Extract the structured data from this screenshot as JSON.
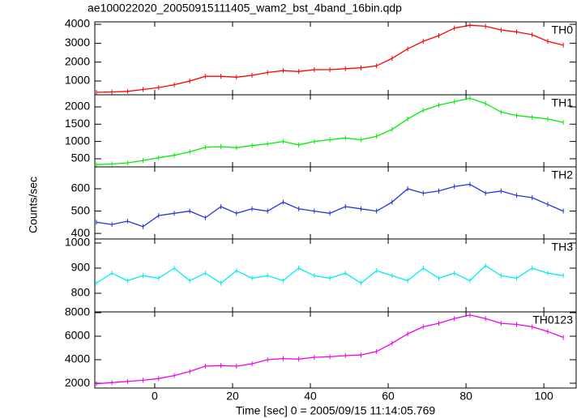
{
  "title": "ae100022020_20050915111405_wam2_bst_4band_16bin.qdp",
  "xlabel": "Time [sec] 0 = 2005/09/15 11:14:05.769",
  "ylabel": "Counts/sec",
  "chart_data": [
    {
      "type": "line",
      "label": "TH0",
      "color": "#ff0000",
      "x": [
        -15,
        -11,
        -7,
        -3,
        1,
        5,
        9,
        13,
        17,
        21,
        25,
        29,
        33,
        37,
        41,
        45,
        49,
        53,
        57,
        61,
        65,
        69,
        73,
        77,
        81,
        85,
        89,
        93,
        97,
        101,
        105
      ],
      "values": [
        400,
        420,
        450,
        550,
        650,
        800,
        1000,
        1250,
        1250,
        1200,
        1300,
        1450,
        1550,
        1500,
        1600,
        1600,
        1650,
        1700,
        1800,
        2200,
        2700,
        3100,
        3400,
        3800,
        3950,
        3900,
        3700,
        3600,
        3450,
        3100,
        2900
      ],
      "xlim": [
        -15.4,
        108.3
      ],
      "xticks": [
        0,
        20,
        40,
        60,
        80,
        100
      ],
      "ylim": [
        270,
        4130
      ],
      "yticks": [
        1000,
        2000,
        3000,
        4000
      ]
    },
    {
      "type": "line",
      "label": "TH1",
      "color": "#00ee00",
      "x": [
        -15,
        -11,
        -7,
        -3,
        1,
        5,
        9,
        13,
        17,
        21,
        25,
        29,
        33,
        37,
        41,
        45,
        49,
        53,
        57,
        61,
        65,
        69,
        73,
        77,
        81,
        85,
        89,
        93,
        97,
        101,
        105
      ],
      "values": [
        330,
        350,
        380,
        450,
        530,
        600,
        700,
        830,
        850,
        820,
        880,
        930,
        1000,
        900,
        1000,
        1050,
        1100,
        1050,
        1150,
        1350,
        1650,
        1900,
        2050,
        2150,
        2250,
        2100,
        1850,
        1750,
        1700,
        1650,
        1550
      ],
      "xlim": [
        -15.4,
        108.3
      ],
      "xticks": [
        0,
        20,
        40,
        60,
        80,
        100
      ],
      "ylim": [
        265,
        2350
      ],
      "yticks": [
        500,
        1000,
        1500,
        2000
      ]
    },
    {
      "type": "line",
      "label": "TH2",
      "color": "#2233dd",
      "x": [
        -15,
        -11,
        -7,
        -3,
        1,
        5,
        9,
        13,
        17,
        21,
        25,
        29,
        33,
        37,
        41,
        45,
        49,
        53,
        57,
        61,
        65,
        69,
        73,
        77,
        81,
        85,
        89,
        93,
        97,
        101,
        105
      ],
      "values": [
        450,
        440,
        455,
        430,
        480,
        490,
        500,
        470,
        520,
        490,
        510,
        500,
        540,
        510,
        500,
        490,
        520,
        510,
        500,
        540,
        600,
        580,
        590,
        610,
        620,
        580,
        590,
        570,
        560,
        530,
        500
      ],
      "xlim": [
        -15.4,
        108.3
      ],
      "xticks": [
        0,
        20,
        40,
        60,
        80,
        100
      ],
      "ylim": [
        375,
        698
      ],
      "yticks": [
        400,
        500,
        600
      ]
    },
    {
      "type": "line",
      "label": "TH3",
      "color": "#00eeee",
      "x": [
        -15,
        -11,
        -7,
        -3,
        1,
        5,
        9,
        13,
        17,
        21,
        25,
        29,
        33,
        37,
        41,
        45,
        49,
        53,
        57,
        61,
        65,
        69,
        73,
        77,
        81,
        85,
        89,
        93,
        97,
        101,
        105
      ],
      "values": [
        840,
        880,
        850,
        870,
        860,
        900,
        850,
        880,
        840,
        890,
        860,
        870,
        850,
        900,
        870,
        860,
        880,
        840,
        890,
        870,
        850,
        900,
        860,
        880,
        850,
        910,
        870,
        860,
        900,
        880,
        870
      ],
      "xlim": [
        -15.4,
        108.3
      ],
      "xticks": [
        0,
        20,
        40,
        60,
        80,
        100
      ],
      "ylim": [
        726,
        1016
      ],
      "yticks": [
        800,
        900,
        1000
      ]
    },
    {
      "type": "line",
      "label": "TH0123",
      "color": "#ee00ee",
      "x": [
        -15,
        -11,
        -7,
        -3,
        1,
        5,
        9,
        13,
        17,
        21,
        25,
        29,
        33,
        37,
        41,
        45,
        49,
        53,
        57,
        61,
        65,
        69,
        73,
        77,
        81,
        85,
        89,
        93,
        97,
        101,
        105
      ],
      "values": [
        1950,
        2050,
        2150,
        2250,
        2400,
        2650,
        3000,
        3450,
        3500,
        3450,
        3650,
        4000,
        4100,
        4050,
        4200,
        4250,
        4350,
        4400,
        4700,
        5400,
        6200,
        6800,
        7100,
        7500,
        7800,
        7500,
        7100,
        7000,
        6800,
        6400,
        5900
      ],
      "xlim": [
        -15.4,
        108.3
      ],
      "xticks": [
        0,
        20,
        40,
        60,
        80,
        100
      ],
      "ylim": [
        1590,
        8070
      ],
      "yticks": [
        2000,
        4000,
        6000,
        8000
      ]
    }
  ]
}
